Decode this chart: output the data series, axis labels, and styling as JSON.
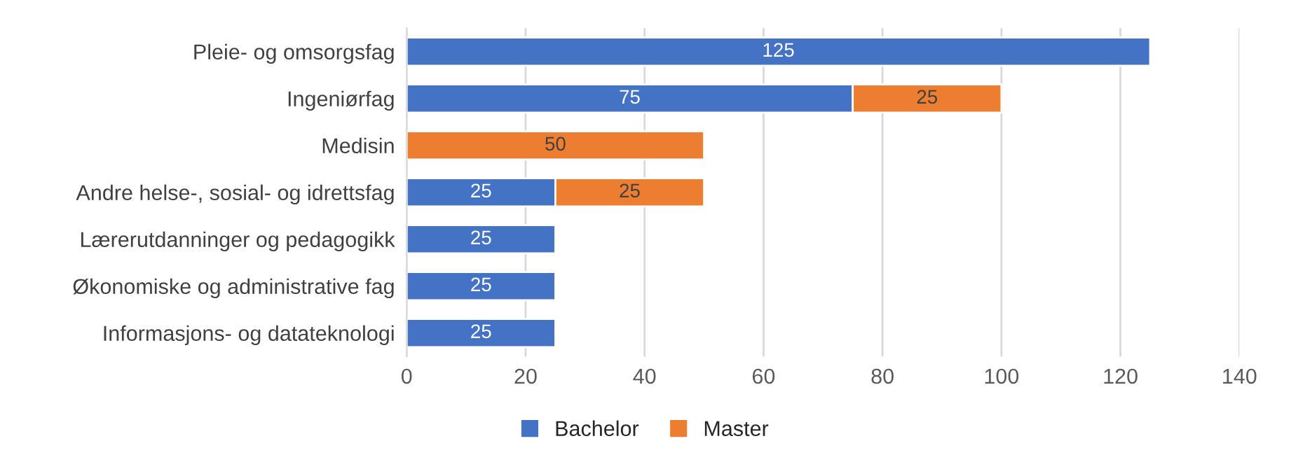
{
  "chart_data": {
    "type": "bar",
    "orientation": "horizontal",
    "stacked": true,
    "categories": [
      "Pleie- og omsorgsfag",
      "Ingeniørfag",
      "Medisin",
      "Andre helse-, sosial- og idrettsfag",
      "Lærerutdanninger og pedagogikk",
      "Økonomiske og administrative fag",
      "Informasjons- og datateknologi"
    ],
    "series": [
      {
        "name": "Bachelor",
        "color": "#4472c4",
        "values": [
          125,
          75,
          null,
          25,
          25,
          25,
          25
        ]
      },
      {
        "name": "Master",
        "color": "#ed7d31",
        "values": [
          null,
          25,
          50,
          25,
          null,
          null,
          null
        ]
      }
    ],
    "xlim": [
      0,
      140
    ],
    "xticks": [
      0,
      20,
      40,
      60,
      80,
      100,
      120,
      140
    ],
    "grid": "x",
    "legend": "bottom",
    "data_labels": true
  }
}
